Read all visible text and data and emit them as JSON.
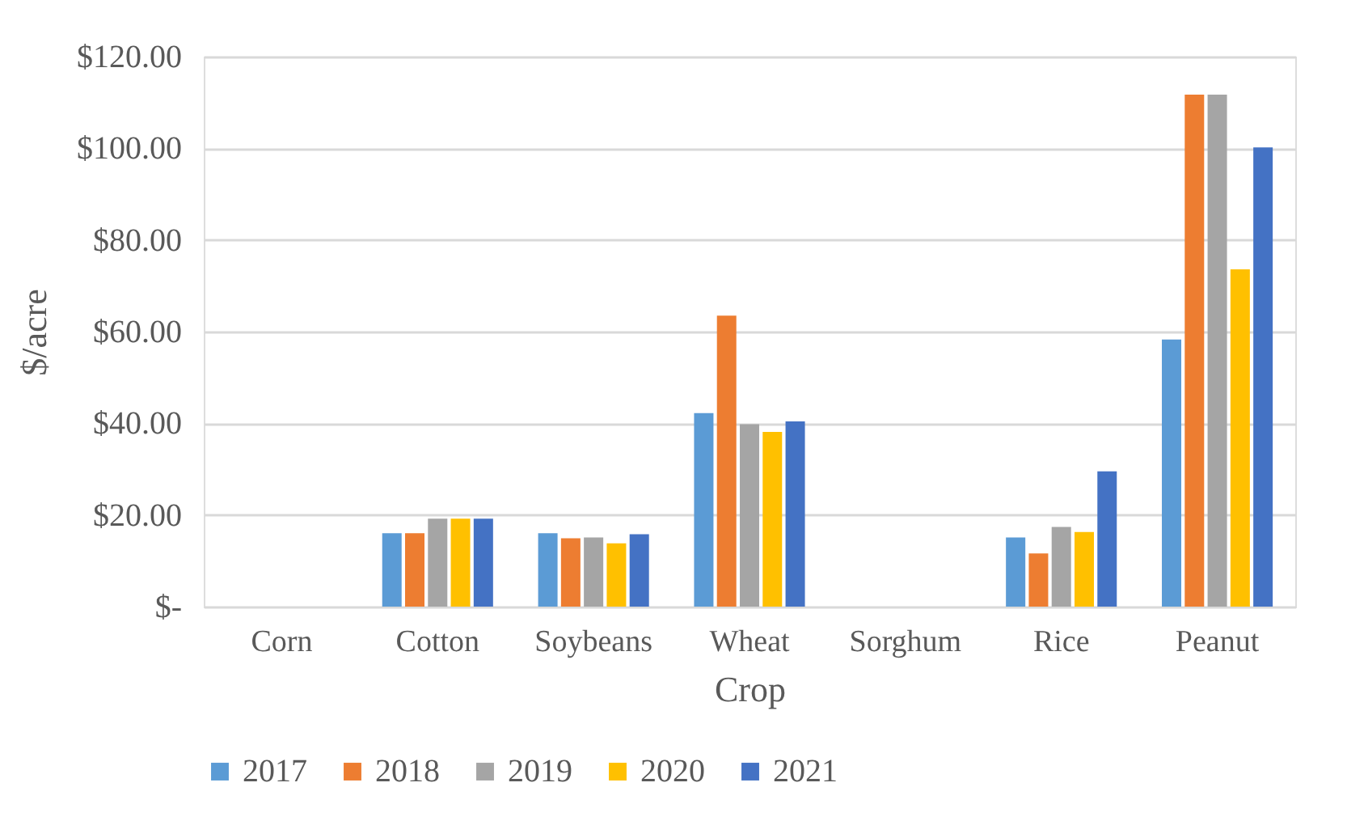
{
  "chart_data": {
    "type": "bar",
    "xlabel": "Crop",
    "ylabel": "$/acre",
    "categories": [
      "Corn",
      "Cotton",
      "Soybeans",
      "Wheat",
      "Sorghum",
      "Rice",
      "Peanut"
    ],
    "series": [
      {
        "name": "2017",
        "color": "#5b9bd5",
        "values": [
          null,
          16.0,
          16.0,
          42.2,
          null,
          15.1,
          58.3
        ]
      },
      {
        "name": "2018",
        "color": "#ed7d31",
        "values": [
          null,
          16.0,
          14.9,
          63.5,
          null,
          11.6,
          111.7
        ]
      },
      {
        "name": "2019",
        "color": "#a5a5a5",
        "values": [
          null,
          19.2,
          15.1,
          39.8,
          null,
          17.4,
          111.7
        ]
      },
      {
        "name": "2020",
        "color": "#ffc000",
        "values": [
          null,
          19.2,
          13.8,
          38.1,
          null,
          16.3,
          73.6
        ]
      },
      {
        "name": "2021",
        "color": "#4472c4",
        "values": [
          null,
          19.2,
          15.8,
          40.4,
          null,
          29.5,
          100.2
        ]
      }
    ],
    "ylim": [
      0,
      120
    ],
    "yticks": [
      {
        "value": 0,
        "label": "$-"
      },
      {
        "value": 20,
        "label": "$20.00"
      },
      {
        "value": 40,
        "label": "$40.00"
      },
      {
        "value": 60,
        "label": "$60.00"
      },
      {
        "value": 80,
        "label": "$80.00"
      },
      {
        "value": 100,
        "label": "$100.00"
      },
      {
        "value": 120,
        "label": "$120.00"
      }
    ],
    "grid": "y",
    "legend": "bottom"
  }
}
